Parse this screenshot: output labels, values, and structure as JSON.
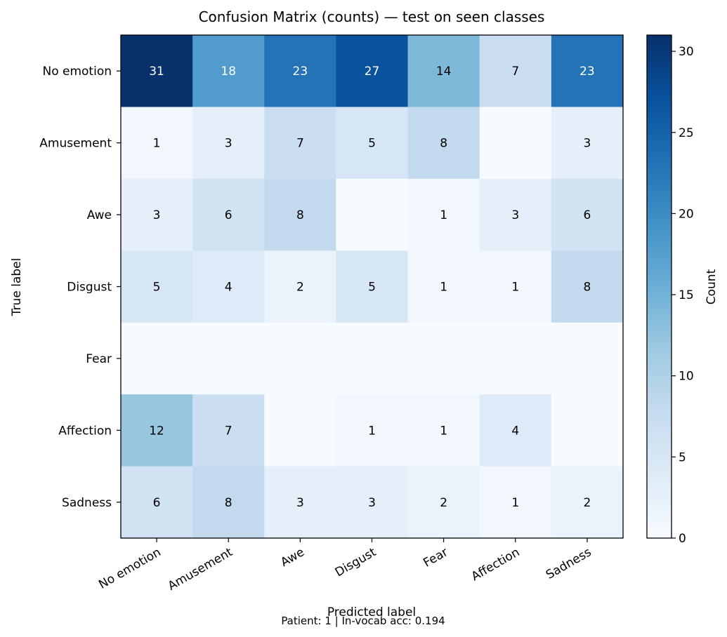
{
  "chart_data": {
    "type": "heatmap",
    "title": "Confusion Matrix (counts) — test on seen classes",
    "xlabel": "Predicted label",
    "ylabel": "True label",
    "x_categories": [
      "No emotion",
      "Amusement",
      "Awe",
      "Disgust",
      "Fear",
      "Affection",
      "Sadness"
    ],
    "y_categories": [
      "No emotion",
      "Amusement",
      "Awe",
      "Disgust",
      "Fear",
      "Affection",
      "Sadness"
    ],
    "values": [
      [
        31,
        18,
        23,
        27,
        14,
        7,
        23
      ],
      [
        1,
        3,
        7,
        5,
        8,
        0,
        3
      ],
      [
        3,
        6,
        8,
        0,
        1,
        3,
        6
      ],
      [
        5,
        4,
        2,
        5,
        1,
        1,
        8
      ],
      [
        0,
        0,
        0,
        0,
        0,
        0,
        0
      ],
      [
        12,
        7,
        0,
        1,
        1,
        4,
        0
      ],
      [
        6,
        8,
        3,
        3,
        2,
        1,
        2
      ]
    ],
    "hide_zero_labels": true,
    "colormap": "Blues",
    "colorbar": {
      "label": "Count",
      "range": [
        0,
        31
      ],
      "ticks": [
        0,
        5,
        10,
        15,
        20,
        25,
        30
      ]
    },
    "footnote": "Patient: 1 | In-vocab acc: 0.194"
  }
}
